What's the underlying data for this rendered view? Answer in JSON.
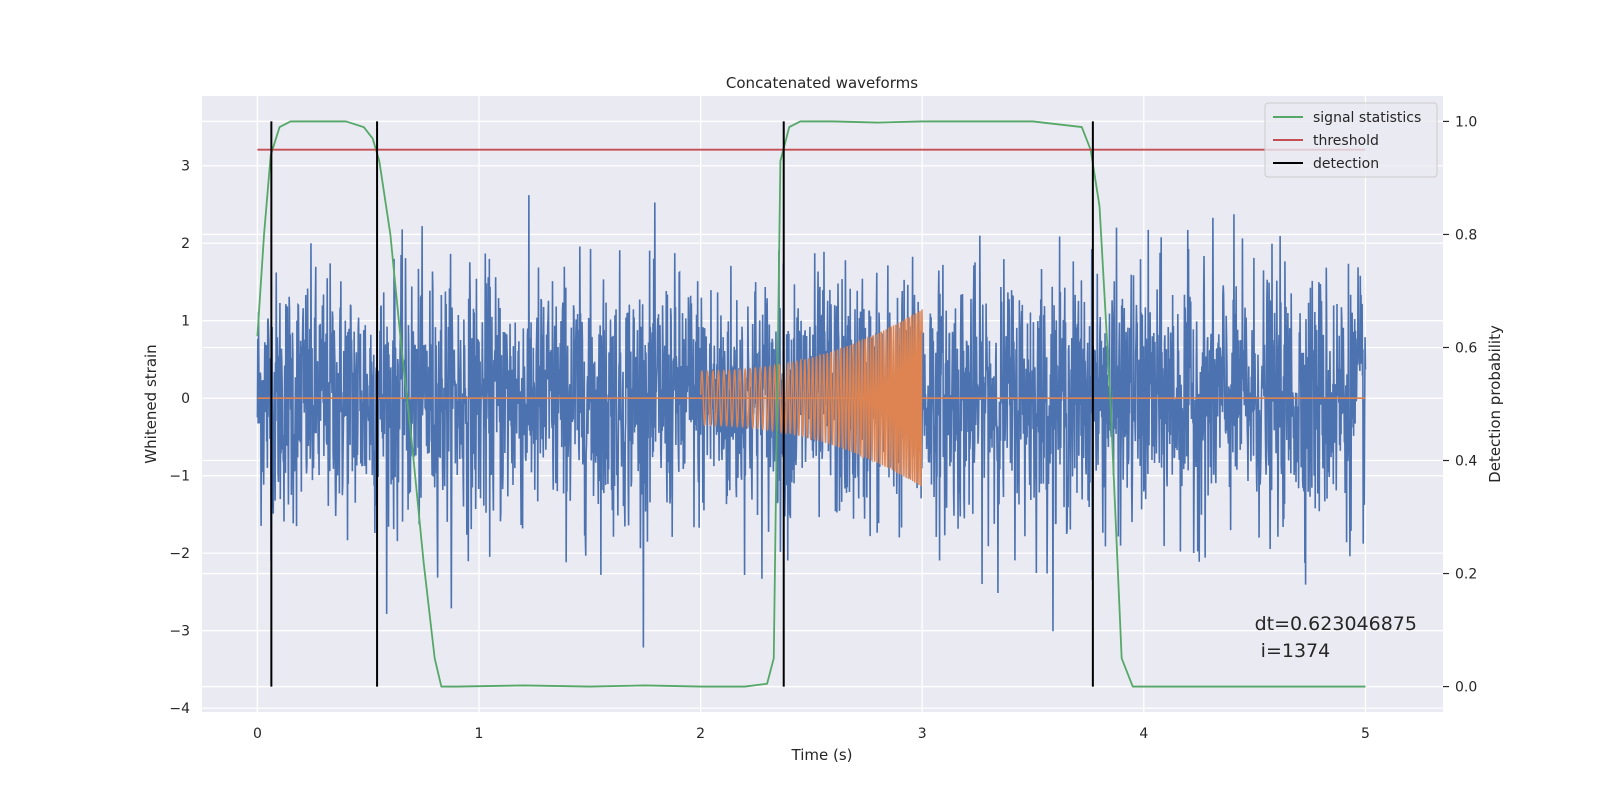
{
  "chart_data": {
    "type": "line",
    "title": "Concatenated waveforms",
    "xlabel": "Time (s)",
    "ylabel": "Whitened strain",
    "y2label": "Detection probability",
    "xlim": [
      -0.25,
      5.35
    ],
    "ylim": [
      -4.05,
      3.9
    ],
    "y2lim": [
      -0.045,
      1.045
    ],
    "xticks": [
      0,
      1,
      2,
      3,
      4,
      5
    ],
    "xtick_labels": [
      "0",
      "1",
      "2",
      "3",
      "4",
      "5"
    ],
    "yticks": [
      -4,
      -3,
      -2,
      -1,
      0,
      1,
      2,
      3
    ],
    "ytick_labels": [
      "−4",
      "−3",
      "−2",
      "−1",
      "0",
      "1",
      "2",
      "3"
    ],
    "y2ticks": [
      0.0,
      0.2,
      0.4,
      0.6,
      0.8,
      1.0
    ],
    "y2tick_labels": [
      "0.0",
      "0.2",
      "0.4",
      "0.6",
      "0.8",
      "1.0"
    ],
    "grid": true,
    "legend_position": "top-right",
    "series": [
      {
        "name": "",
        "color": "#4c72b0",
        "axis": "left",
        "kind": "noise",
        "x_range": [
          0,
          5
        ],
        "sigma": 0.8
      },
      {
        "name": "",
        "color": "#dd8452",
        "axis": "left",
        "kind": "chirp",
        "x_range": [
          2,
          3
        ],
        "amp_start": 0.35,
        "amp_end": 1.15,
        "f_start": 40,
        "f_end": 110
      },
      {
        "name": "signal statistics",
        "color": "#55a868",
        "axis": "right",
        "x": [
          0,
          0.03,
          0.06,
          0.1,
          0.15,
          0.2,
          0.3,
          0.4,
          0.48,
          0.52,
          0.55,
          0.6,
          0.65,
          0.7,
          0.75,
          0.8,
          0.83,
          0.9,
          1.2,
          1.5,
          1.75,
          2.0,
          2.2,
          2.3,
          2.33,
          2.36,
          2.4,
          2.45,
          2.6,
          2.8,
          3.0,
          3.5,
          3.72,
          3.76,
          3.8,
          3.85,
          3.9,
          3.95,
          4.5,
          5.0
        ],
        "y": [
          0.62,
          0.8,
          0.94,
          0.99,
          1.0,
          1.0,
          1.0,
          1.0,
          0.99,
          0.97,
          0.93,
          0.8,
          0.6,
          0.42,
          0.22,
          0.05,
          0.0,
          0.0,
          0.002,
          0.0,
          0.002,
          0.0,
          0.0,
          0.005,
          0.05,
          0.93,
          0.99,
          1.0,
          1.0,
          0.998,
          1.0,
          1.0,
          0.99,
          0.95,
          0.85,
          0.5,
          0.05,
          0.0,
          0.0,
          0.0
        ]
      },
      {
        "name": "threshold",
        "color": "#c44e52",
        "axis": "right",
        "x": [
          0,
          5
        ],
        "y": [
          0.95,
          0.95
        ]
      },
      {
        "name": "detection",
        "color": "#000000",
        "axis": "right",
        "kind": "vlines",
        "x": [
          0.063,
          0.54,
          2.375,
          3.77
        ],
        "ymin": 0.0,
        "ymax": 1.0
      }
    ],
    "annotation": {
      "lines": [
        "dt=0.623046875",
        " i=1374"
      ],
      "x": 4.5,
      "y": 0.1
    }
  }
}
